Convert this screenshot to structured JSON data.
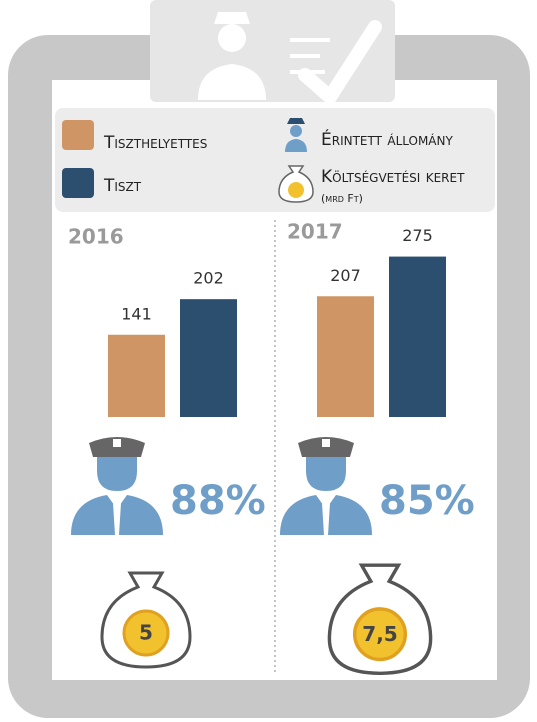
{
  "legend": {
    "staff": "Érintett állomány",
    "budget": "Költségvetési keret",
    "budget_unit": "(mrd Ft)"
  },
  "chart_data": [
    {
      "type": "bar",
      "title": "2016",
      "categories": [
        null
      ],
      "ylim": [
        0,
        300
      ],
      "series": [
        {
          "name": "Tiszthelyettes",
          "color": "#d09565",
          "values": [
            141
          ]
        },
        {
          "name": "Tiszt",
          "color": "#2c4f6f",
          "values": [
            202
          ]
        }
      ],
      "share": {
        "value": 88,
        "label": "88%"
      },
      "budget": {
        "value": 5,
        "label": "5"
      }
    },
    {
      "type": "bar",
      "title": "2017",
      "categories": [
        null
      ],
      "ylim": [
        0,
        300
      ],
      "series": [
        {
          "name": "Tiszthelyettes",
          "color": "#d09565",
          "values": [
            207
          ]
        },
        {
          "name": "Tiszt",
          "color": "#2c4f6f",
          "values": [
            275
          ]
        }
      ],
      "share": {
        "value": 85,
        "label": "85%"
      },
      "budget": {
        "value": 7.5,
        "label": "7,5"
      }
    }
  ]
}
